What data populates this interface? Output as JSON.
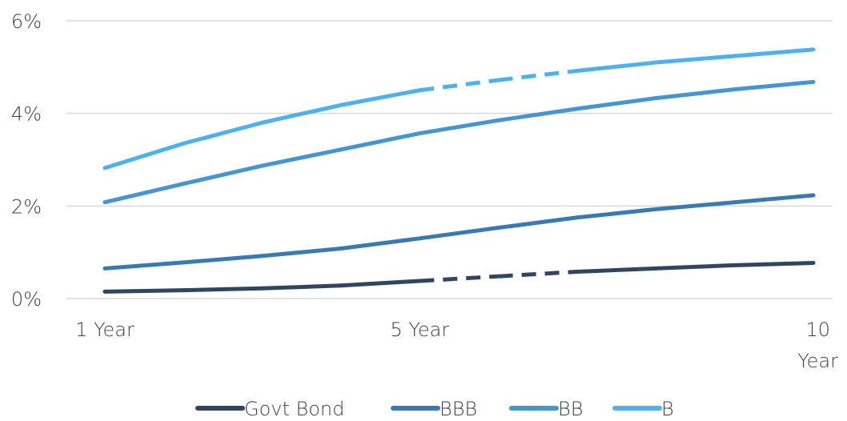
{
  "chart_data": {
    "type": "line",
    "title": "",
    "xlabel": "",
    "ylabel": "",
    "x": [
      1,
      2,
      3,
      4,
      5,
      6,
      7,
      8,
      9,
      10
    ],
    "x_tick_labels": [
      {
        "x": 1,
        "lines": [
          "1 Year"
        ]
      },
      {
        "x": 5,
        "lines": [
          "5 Year"
        ]
      },
      {
        "x": 10,
        "lines": [
          "10",
          "Year"
        ]
      }
    ],
    "ylim": [
      0,
      6
    ],
    "y_ticks": [
      0,
      2,
      4,
      6
    ],
    "y_tick_labels": [
      "0%",
      "2%",
      "4%",
      "6%"
    ],
    "grid": true,
    "legend_position": "bottom",
    "series": [
      {
        "name": "Govt Bond",
        "color": "#2f4560",
        "values": [
          0.15,
          0.18,
          0.22,
          0.28,
          0.38,
          0.48,
          0.58,
          0.65,
          0.72,
          0.77
        ],
        "dashed_segment": [
          5,
          7
        ]
      },
      {
        "name": "BBB",
        "color": "#3a7ab4",
        "values": [
          0.65,
          0.78,
          0.92,
          1.08,
          1.3,
          1.53,
          1.75,
          1.93,
          2.08,
          2.23
        ],
        "dashed_segment": null
      },
      {
        "name": "BB",
        "color": "#4495d2",
        "values": [
          2.08,
          2.48,
          2.87,
          3.22,
          3.57,
          3.85,
          4.1,
          4.33,
          4.52,
          4.68
        ],
        "dashed_segment": null
      },
      {
        "name": "B",
        "color": "#4db1f0",
        "values": [
          2.82,
          3.35,
          3.8,
          4.18,
          4.5,
          4.72,
          4.92,
          5.1,
          5.24,
          5.38
        ],
        "dashed_segment": [
          5,
          7
        ]
      }
    ]
  }
}
